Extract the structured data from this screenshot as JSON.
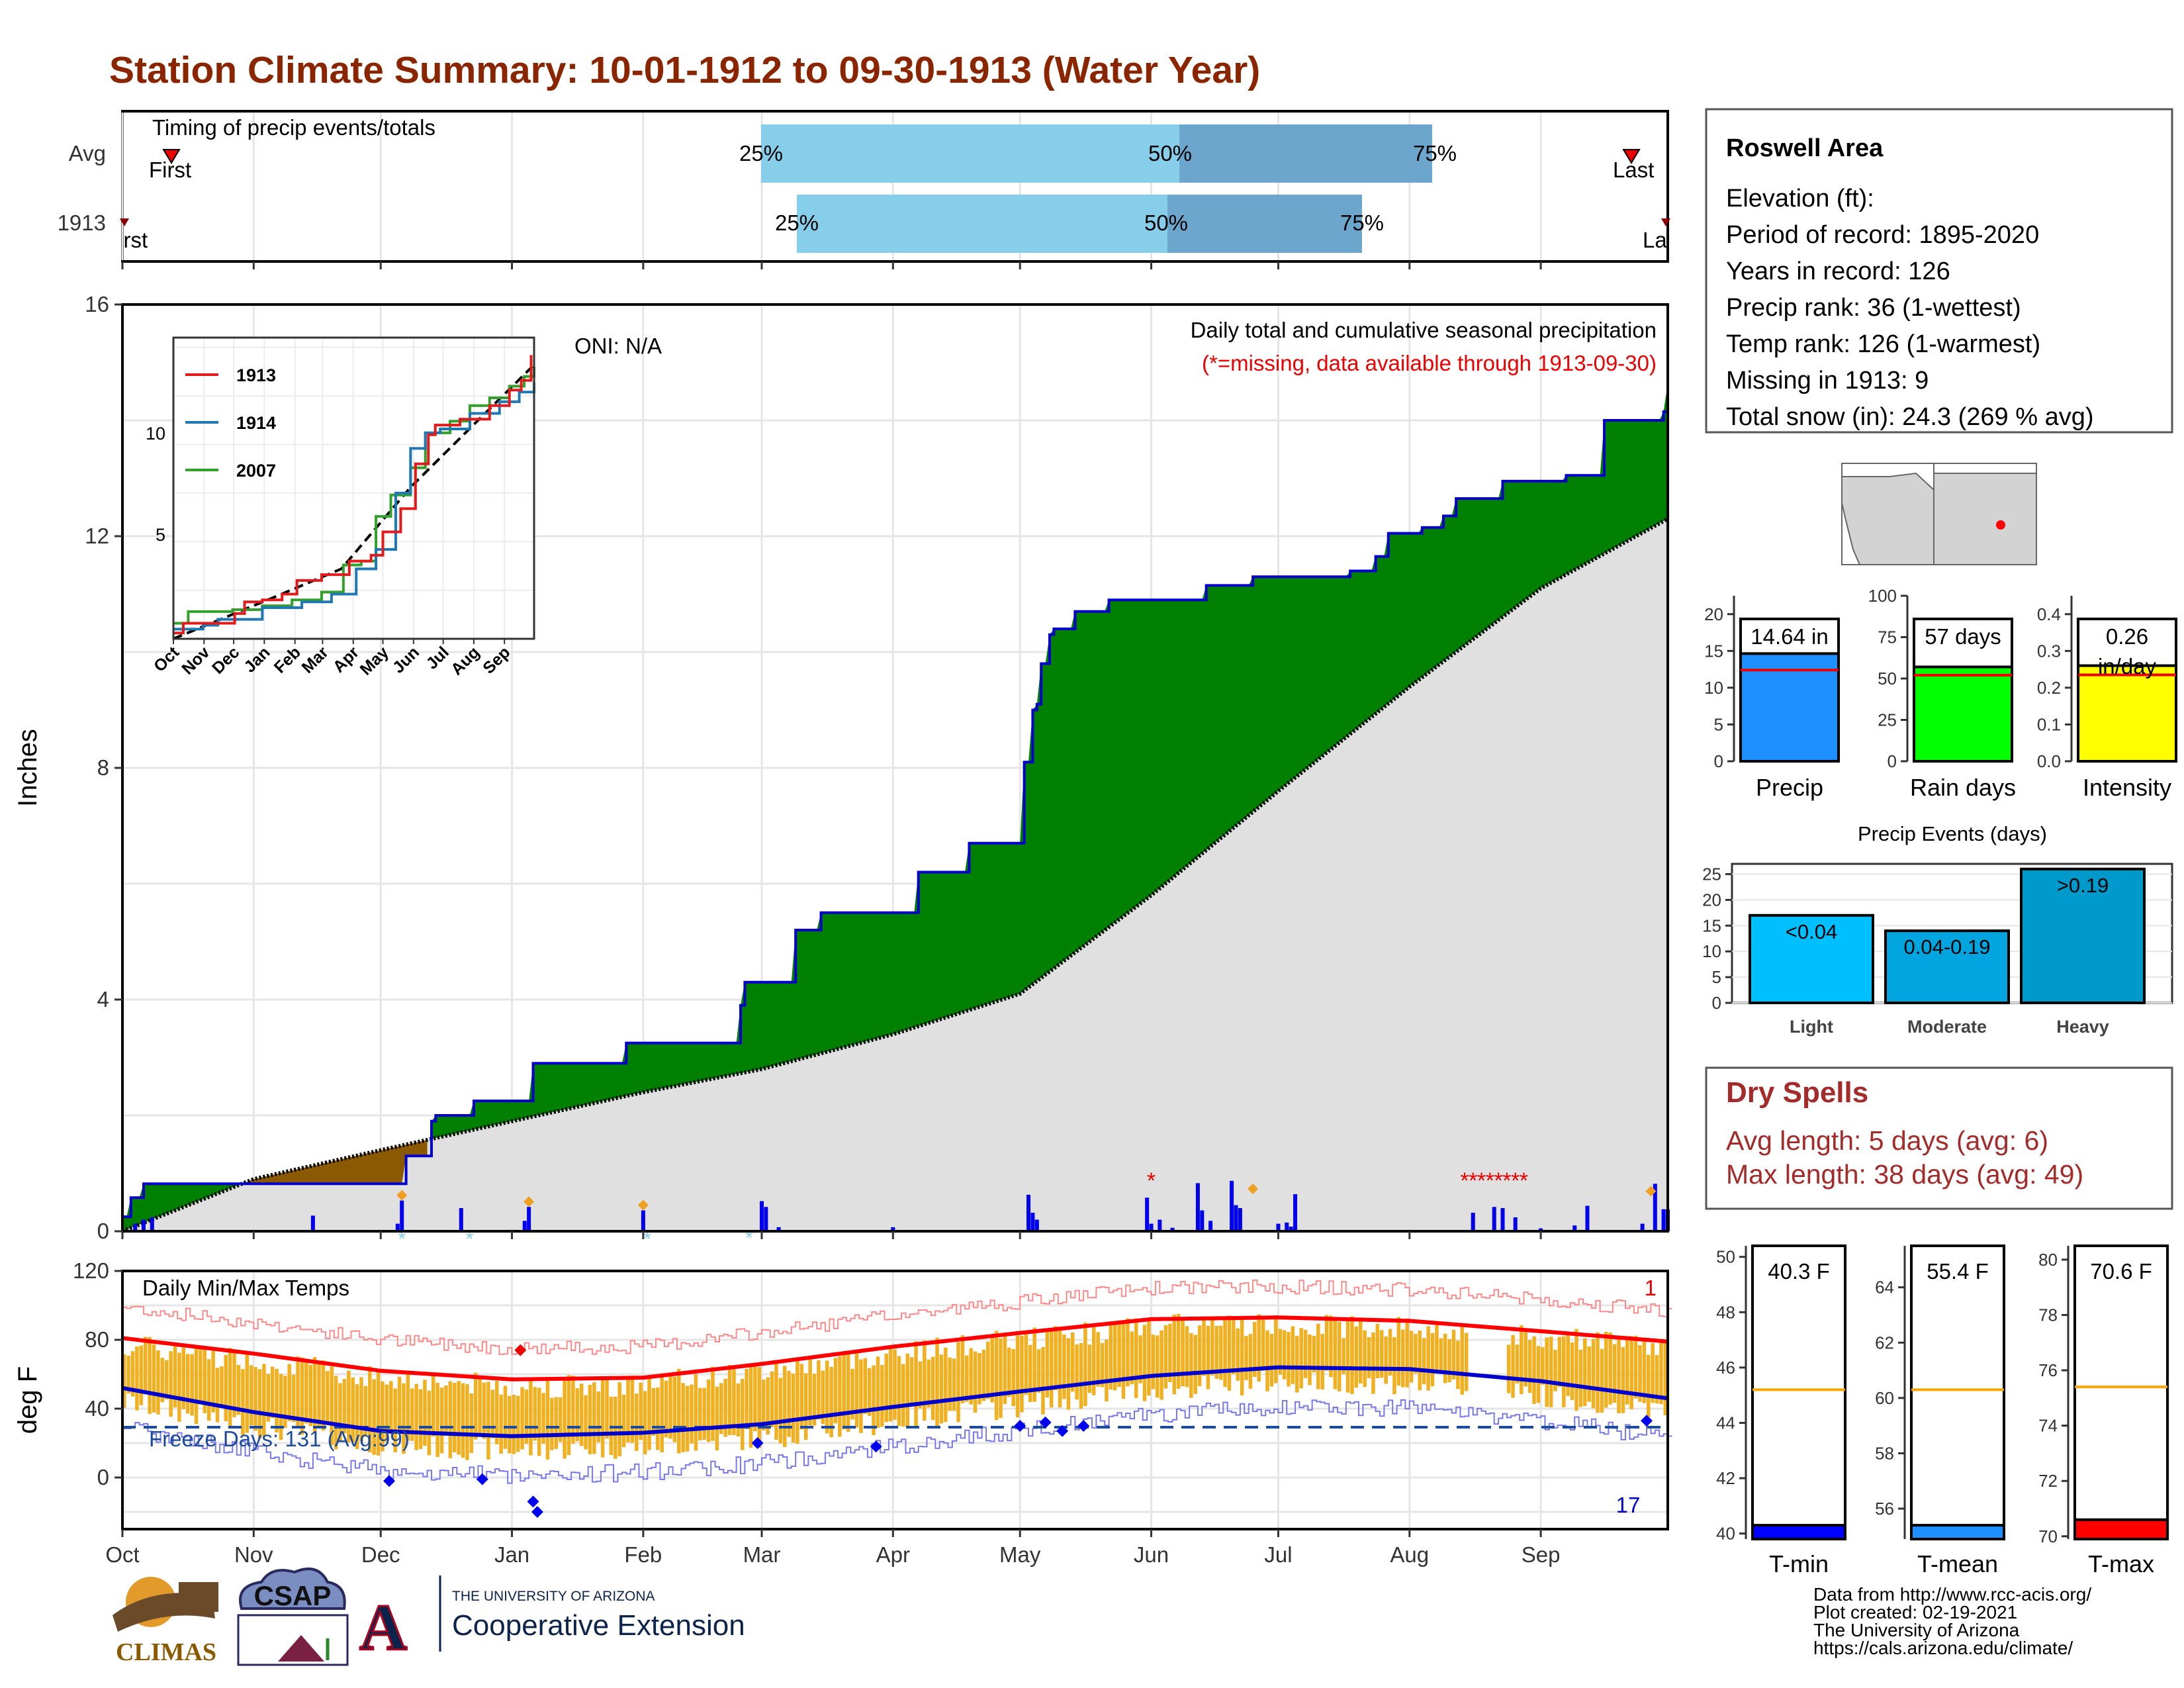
{
  "title": "Station Climate Summary: 10-01-1912 to 09-30-1913 (Water Year)",
  "colors": {
    "title": "#8b2500",
    "precip_fill": "#008000",
    "deficit_fill": "#8b5a00",
    "normal_fill": "#e0e0e0",
    "bar_light": "#87ceeb",
    "bar_dark": "#6ca6cd",
    "tmin_bar": "#0000ff",
    "tmean_bar": "#1e90ff",
    "tmax_bar": "#ff0000",
    "precip_box": "#1e90ff",
    "raindays_box": "#00ff00",
    "intensity_box": "#ffff00",
    "events_light": "#00bfff",
    "events_moderate": "#00a5e0",
    "events_heavy": "#0099cc",
    "dry_spell_text": "#a52a2a",
    "temp_bars": "#f0b020"
  },
  "timing": {
    "label": "Timing of precip events/totals",
    "rows": [
      {
        "name": "Avg",
        "first_label": "First",
        "last_label": "Last",
        "p25": "25%",
        "p50": "50%",
        "p75": "75%"
      },
      {
        "name": "1913",
        "first_label": "First",
        "last_label": "Last",
        "p25": "25%",
        "p50": "50%",
        "p75": "75%"
      }
    ]
  },
  "precip_panel": {
    "ylabel": "Inches",
    "yticks": [
      "0",
      "4",
      "8",
      "12",
      "16"
    ],
    "oni": "ONI: N/A",
    "caption": "Daily total and cumulative seasonal precipitation",
    "missing_note": "(*=missing, data available through 1913-09-30)"
  },
  "inset": {
    "legend": [
      "1913",
      "1914",
      "2007"
    ],
    "yticks": [
      "5",
      "10"
    ],
    "xticks": [
      "Oct",
      "Nov",
      "Dec",
      "Jan",
      "Feb",
      "Mar",
      "Apr",
      "May",
      "Jun",
      "Jul",
      "Aug",
      "Sep"
    ]
  },
  "temp_panel": {
    "ylabel": "deg F",
    "title": "Daily Min/Max Temps",
    "yticks": [
      "0",
      "40",
      "80",
      "120"
    ],
    "freeze_label": "Freeze Days: 131 (Avg:99)",
    "top_count": "1",
    "bottom_count": "17"
  },
  "months": [
    "Oct",
    "Nov",
    "Dec",
    "Jan",
    "Feb",
    "Mar",
    "Apr",
    "May",
    "Jun",
    "Jul",
    "Aug",
    "Sep"
  ],
  "station": {
    "name": "Roswell Area",
    "lines": [
      "Elevation (ft):",
      "Period of record: 1895-2020",
      "Years in record: 126",
      "Precip rank: 36 (1-wettest)",
      "Temp rank: 126 (1-warmest)",
      "Missing in 1913: 9",
      "Total snow (in): 24.3 (269 % avg)"
    ]
  },
  "summary_bars": [
    {
      "name": "Precip",
      "value_label": "14.64 in",
      "value_label2": "",
      "value": 14.64,
      "avg": 12.4,
      "ymax": 22.5,
      "yticks": [
        "0",
        "5",
        "10",
        "15",
        "20"
      ]
    },
    {
      "name": "Rain days",
      "value_label": "57 days",
      "value_label2": "",
      "value": 57,
      "avg": 52,
      "ymax": 100,
      "yticks": [
        "0",
        "25",
        "50",
        "75",
        "100"
      ]
    },
    {
      "name": "Intensity",
      "value_label": "0.26",
      "value_label2": "in/day",
      "value": 0.26,
      "avg": 0.235,
      "ymax": 0.45,
      "yticks": [
        "0.0",
        "0.1",
        "0.2",
        "0.3",
        "0.4"
      ]
    }
  ],
  "precip_events": {
    "title": "Precip Events (days)",
    "yticks": [
      "0",
      "5",
      "10",
      "15",
      "20",
      "25"
    ],
    "categories": [
      "Light",
      "Moderate",
      "Heavy"
    ],
    "labels": [
      "<0.04",
      "0.04-0.19",
      ">0.19"
    ],
    "values": [
      17,
      14,
      26
    ]
  },
  "dry_spells": {
    "title": "Dry Spells",
    "avg": "Avg length: 5 days (avg: 6)",
    "max": "Max length: 38 days (avg: 49)"
  },
  "temp_bars": [
    {
      "name": "T-min",
      "label": "40.3 F",
      "value": 40.3,
      "avg": 45.2,
      "ymin": 39.8,
      "ymax": 50.4,
      "yticks": [
        "40",
        "42",
        "44",
        "46",
        "48",
        "50"
      ],
      "tickvals": [
        40,
        42,
        44,
        46,
        48,
        50
      ]
    },
    {
      "name": "T-mean",
      "label": "55.4 F",
      "value": 55.4,
      "avg": 60.3,
      "ymin": 54.9,
      "ymax": 65.5,
      "yticks": [
        "56",
        "58",
        "60",
        "62",
        "64"
      ],
      "tickvals": [
        56,
        58,
        60,
        62,
        64
      ]
    },
    {
      "name": "T-max",
      "label": "70.6 F",
      "value": 70.6,
      "avg": 75.4,
      "ymin": 69.9,
      "ymax": 80.5,
      "yticks": [
        "70",
        "72",
        "74",
        "76",
        "78",
        "80"
      ],
      "tickvals": [
        70,
        72,
        74,
        76,
        78,
        80
      ]
    }
  ],
  "footer": {
    "logos": [
      "CLIMAS",
      "CSAP",
      "THE UNIVERSITY OF ARIZONA",
      "Cooperative Extension"
    ],
    "credits": [
      "Data from http://www.rcc-acis.org/",
      "Plot created: 02-19-2021",
      "The University of Arizona",
      "https://cals.arizona.edu/climate/"
    ]
  },
  "chart_data": [
    {
      "type": "area",
      "title": "Daily total and cumulative seasonal precipitation",
      "ylabel": "Inches",
      "ylim": [
        0,
        16
      ],
      "x": [
        "Oct",
        "Nov",
        "Dec",
        "Jan",
        "Feb",
        "Mar",
        "Apr",
        "May",
        "Jun",
        "Jul",
        "Aug",
        "Sep"
      ],
      "series": [
        {
          "values": [
            0.8,
            0.8,
            1.3,
            2.2,
            2.8,
            4.0,
            5.4,
            6.6,
            10.6,
            11.3,
            12.7,
            14.6
          ]
        },
        {
          "values": [
            0.0,
            0.9,
            1.4,
            1.9,
            2.4,
            2.8,
            3.4,
            4.1,
            5.8,
            7.6,
            9.4,
            11.9
          ]
        }
      ]
    },
    {
      "type": "line",
      "ylabel": "deg F",
      "ylim": [
        -30,
        120
      ],
      "title": "Daily Min/Max Temps",
      "x": [
        "Oct",
        "Nov",
        "Dec",
        "Jan",
        "Feb",
        "Mar",
        "Apr",
        "May",
        "Jun",
        "Jul",
        "Aug",
        "Sep"
      ],
      "series": [
        {
          "values": [
            81,
            72,
            62,
            57,
            58,
            66,
            76,
            84,
            92,
            93,
            91,
            85
          ]
        },
        {
          "values": [
            50,
            38,
            27,
            24,
            26,
            31,
            41,
            50,
            59,
            64,
            63,
            56
          ]
        }
      ]
    },
    {
      "type": "bar",
      "title": "Precip Events (days)",
      "categories": [
        "Light",
        "Moderate",
        "Heavy"
      ],
      "values": [
        17,
        14,
        26
      ],
      "ylim": [
        0,
        27
      ]
    }
  ]
}
